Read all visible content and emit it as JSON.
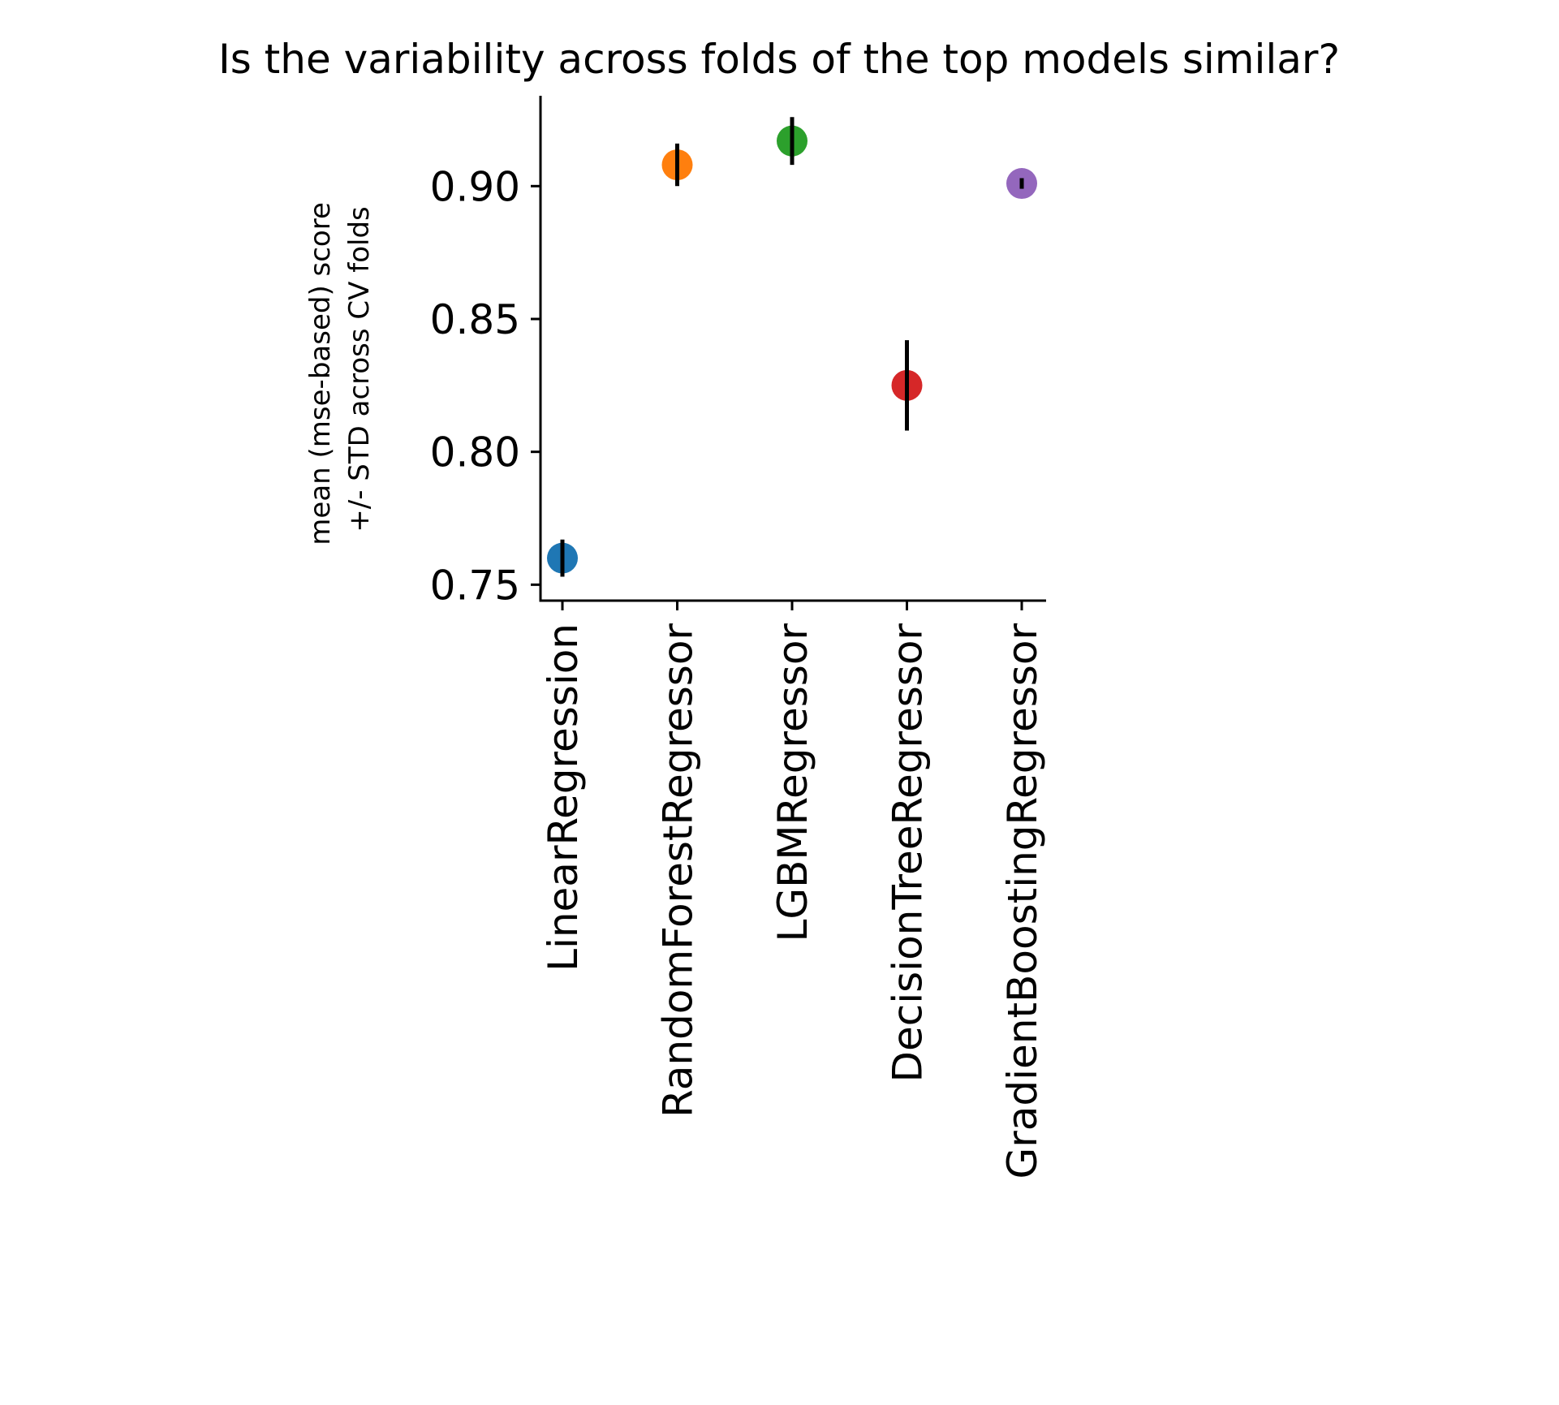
{
  "chart_data": {
    "type": "scatter",
    "title": "Is the variability across folds of the top models similar?",
    "ylabel_lines": [
      "mean (mse-based) score",
      "+/- STD across CV folds"
    ],
    "xlabel": "",
    "categories": [
      "LinearRegression",
      "RandomForestRegressor",
      "LGBMRegressor",
      "DecisionTreeRegressor",
      "GradientBoostingRegressor"
    ],
    "values": [
      0.76,
      0.908,
      0.917,
      0.825,
      0.901
    ],
    "errors": [
      0.007,
      0.008,
      0.009,
      0.017,
      0.002
    ],
    "colors": [
      "#1f77b4",
      "#ff7f0e",
      "#2ca02c",
      "#d62728",
      "#9467bd"
    ],
    "ylim": [
      0.744,
      0.934
    ],
    "yticks": [
      0.75,
      0.8,
      0.85,
      0.9
    ],
    "ytick_labels": [
      "0.75",
      "0.80",
      "0.85",
      "0.90"
    ],
    "grid": false,
    "legend": false
  }
}
